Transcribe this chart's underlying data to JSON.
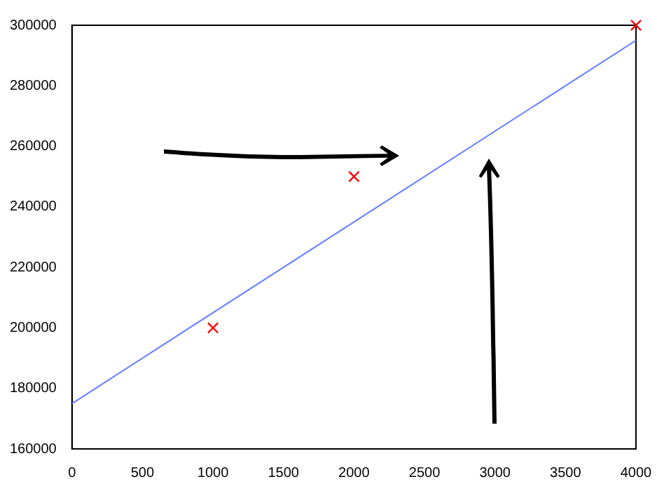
{
  "chart_data": {
    "type": "scatter",
    "xlim": [
      0,
      4000
    ],
    "xticks": [
      0,
      500,
      1000,
      1500,
      2000,
      2500,
      3000,
      3500,
      4000
    ],
    "ylim": [
      160000,
      300000
    ],
    "yticks": [
      160000,
      180000,
      200000,
      220000,
      240000,
      260000,
      280000,
      300000
    ],
    "grid": false,
    "series": [
      {
        "type": "scatter",
        "color": "#ff0000",
        "marker": "cross",
        "x": [
          1000,
          2000,
          4000
        ],
        "values": [
          200000,
          250000,
          300000
        ]
      },
      {
        "type": "line",
        "color": "#6680ff",
        "marker": "none",
        "line_style": "solid",
        "x": [
          0,
          4000
        ],
        "values": [
          175000,
          295000
        ]
      }
    ]
  }
}
